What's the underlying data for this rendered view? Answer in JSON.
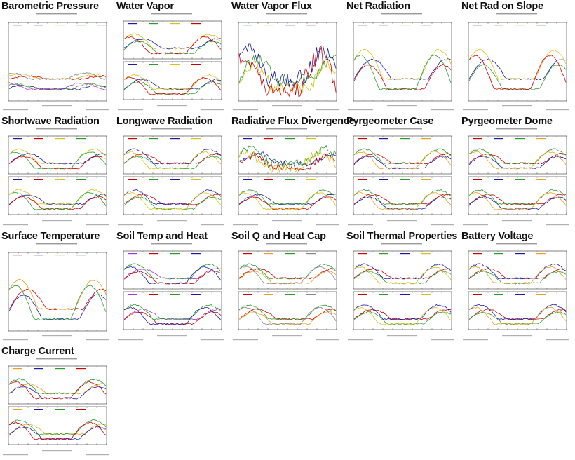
{
  "thumbnails": [
    {
      "title": "Barometric Pressure",
      "panels": 1,
      "palette": [
        "#cc0000",
        "#1a1aa6",
        "#d4c21a",
        "#44aa33",
        "#888888",
        "#c040c0"
      ]
    },
    {
      "title": "Water Vapor",
      "panels": 2,
      "palette": [
        "#1a1aa6",
        "#2a9a2a",
        "#d4c21a",
        "#cc0000"
      ]
    },
    {
      "title": "Water Vapor Flux",
      "panels": 1,
      "palette": [
        "#2a9a2a",
        "#d4c21a",
        "#1a1aa6",
        "#cc0000"
      ]
    },
    {
      "title": "Net Radiation",
      "panels": 1,
      "palette": [
        "#1a1aa6",
        "#cc0000",
        "#d4c21a",
        "#2a9a2a"
      ]
    },
    {
      "title": "Net Rad on Slope",
      "panels": 1,
      "palette": [
        "#1a1aa6",
        "#2a9a2a",
        "#d4c21a",
        "#cc0000"
      ]
    },
    {
      "title": "Shortwave Radiation",
      "panels": 2,
      "palette": [
        "#1a1aa6",
        "#cc0000",
        "#d4c21a",
        "#2a9a2a"
      ]
    },
    {
      "title": "Longwave Radiation",
      "panels": 2,
      "palette": [
        "#cc0000",
        "#2a9a2a",
        "#1a1aa6",
        "#d4c21a"
      ]
    },
    {
      "title": "Radiative Flux Divergence",
      "panels": 2,
      "palette": [
        "#1a1aa6",
        "#cc0000",
        "#2a9a2a",
        "#d4c21a"
      ]
    },
    {
      "title": "Pyrgeometer Case",
      "panels": 2,
      "palette": [
        "#cc0000",
        "#1a1aa6",
        "#2a9a2a",
        "#e8a020"
      ]
    },
    {
      "title": "Pyrgeometer Dome",
      "panels": 2,
      "palette": [
        "#cc0000",
        "#1a1aa6",
        "#2a9a2a",
        "#e8a020"
      ]
    },
    {
      "title": "Surface Temperature",
      "panels": 1,
      "palette": [
        "#cc0000",
        "#1a1aa6",
        "#e8a020",
        "#2a9a2a"
      ]
    },
    {
      "title": "Soil Temp and Heat",
      "panels": 2,
      "palette": [
        "#9a3ad0",
        "#cc0000",
        "#2a9a2a",
        "#1a1aa6"
      ]
    },
    {
      "title": "Soil Q and Heat Cap",
      "panels": 2,
      "palette": [
        "#cc0000",
        "#e8a020",
        "#2a9a2a",
        "#888888"
      ]
    },
    {
      "title": "Soil Thermal Properties",
      "panels": 2,
      "palette": [
        "#cc0000",
        "#2a9a2a",
        "#1a1aa6",
        "#d4c21a"
      ]
    },
    {
      "title": "Battery Voltage",
      "panels": 2,
      "palette": [
        "#cc0000",
        "#2a9a2a",
        "#1a1aa6",
        "#e8a020"
      ]
    },
    {
      "title": "Charge Current",
      "panels": 2,
      "palette": [
        "#e8a020",
        "#1a1aa6",
        "#2a9a2a",
        "#cc0000"
      ]
    }
  ]
}
